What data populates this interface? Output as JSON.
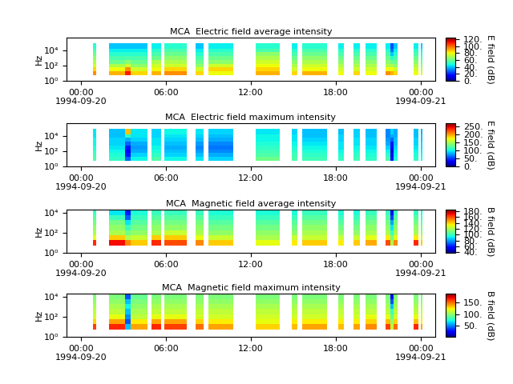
{
  "chart_data": [
    {
      "type": "heatmap",
      "title": "MCA  Electric field average intensity",
      "ylabel": "Hz",
      "log": "y",
      "xlim": [
        -1,
        25
      ],
      "xticks": [
        {
          "value": 0,
          "label": "00:00\n1994-09-20"
        },
        {
          "value": 6,
          "label": "06:00"
        },
        {
          "value": 12,
          "label": "12:00"
        },
        {
          "value": 18,
          "label": "18:00"
        },
        {
          "value": 24,
          "label": "00:00\n1994-09-21"
        }
      ],
      "ylim": [
        1,
        500000
      ],
      "yticks": [
        {
          "value": 1,
          "label": "10⁰"
        },
        {
          "value": 100,
          "label": "10²"
        },
        {
          "value": 10000,
          "label": "10⁴"
        }
      ],
      "x_edges": [
        0.85,
        1.07,
        2.0,
        3.1,
        3.5,
        4.7,
        5.0,
        5.65,
        5.9,
        7.45,
        8.1,
        8.65,
        9.0,
        10.75,
        12.35,
        14.05,
        14.9,
        15.3,
        15.65,
        17.35,
        18.15,
        18.55,
        19.25,
        19.7,
        20.1,
        20.9,
        21.5,
        21.85,
        22.05,
        22.35,
        23.5,
        23.85,
        24.0,
        24.1
      ],
      "y_edges": [
        5.6,
        18,
        56,
        180,
        560,
        1800,
        5600,
        18000,
        100000
      ],
      "cells": [
        [
          95,
          85,
          75,
          70,
          65,
          60,
          55,
          50
        ],
        null,
        [
          90,
          80,
          70,
          60,
          55,
          50,
          45,
          40
        ],
        [
          110,
          95,
          75,
          65,
          55,
          50,
          45,
          40
        ],
        [
          85,
          75,
          65,
          60,
          55,
          50,
          45,
          40
        ],
        null,
        [
          90,
          80,
          75,
          70,
          60,
          55,
          50,
          45
        ],
        null,
        [
          95,
          85,
          75,
          70,
          65,
          60,
          55,
          50
        ],
        null,
        [
          85,
          75,
          65,
          60,
          55,
          50,
          45,
          40
        ],
        null,
        [
          80,
          85,
          75,
          65,
          60,
          55,
          50,
          45
        ],
        null,
        [
          90,
          85,
          80,
          75,
          70,
          65,
          55,
          50
        ],
        null,
        [
          85,
          75,
          70,
          65,
          60,
          55,
          50,
          45
        ],
        null,
        [
          90,
          80,
          75,
          70,
          65,
          60,
          55,
          50
        ],
        null,
        [
          80,
          75,
          70,
          65,
          60,
          55,
          50,
          45
        ],
        null,
        [
          85,
          75,
          70,
          65,
          60,
          55,
          50,
          45
        ],
        null,
        [
          80,
          75,
          70,
          65,
          60,
          55,
          50,
          45
        ],
        null,
        [
          95,
          80,
          70,
          65,
          60,
          55,
          50,
          45
        ],
        [
          90,
          80,
          70,
          60,
          50,
          40,
          30,
          25
        ],
        [
          85,
          75,
          65,
          60,
          55,
          50,
          45,
          40
        ],
        null,
        [
          80,
          75,
          70,
          65,
          60,
          55,
          50,
          45
        ],
        null,
        [
          75,
          70,
          65,
          60,
          55,
          50,
          45,
          40
        ]
      ],
      "colorbar_label": "E field (dB)",
      "colorbar_range": [
        0,
        125
      ],
      "colorbar_ticks": [
        {
          "value": 0,
          "label": "0."
        },
        {
          "value": 20,
          "label": "20."
        },
        {
          "value": 40,
          "label": "40."
        },
        {
          "value": 60,
          "label": "60."
        },
        {
          "value": 80,
          "label": "80."
        },
        {
          "value": 100,
          "label": "100."
        },
        {
          "value": 120,
          "label": "120."
        }
      ]
    },
    {
      "type": "heatmap",
      "title": "MCA  Electric field maximum intensity",
      "ylabel": "Hz",
      "log": "y",
      "xlim": [
        -1,
        25
      ],
      "xticks": [
        {
          "value": 0,
          "label": "00:00\n1994-09-20"
        },
        {
          "value": 6,
          "label": "06:00"
        },
        {
          "value": 12,
          "label": "12:00"
        },
        {
          "value": 18,
          "label": "18:00"
        },
        {
          "value": 24,
          "label": "00:00\n1994-09-21"
        }
      ],
      "ylim": [
        1,
        500000
      ],
      "yticks": [
        {
          "value": 1,
          "label": "10⁰"
        },
        {
          "value": 100,
          "label": "10²"
        },
        {
          "value": 10000,
          "label": "10⁴"
        }
      ],
      "x_edges": [
        0.85,
        1.07,
        2.0,
        3.1,
        3.5,
        4.7,
        5.0,
        5.65,
        5.9,
        7.45,
        8.1,
        8.65,
        9.0,
        10.75,
        12.35,
        14.05,
        14.9,
        15.3,
        15.65,
        17.35,
        18.15,
        18.55,
        19.25,
        19.7,
        20.1,
        20.9,
        21.5,
        21.85,
        22.05,
        22.35,
        23.5,
        23.85,
        24.0,
        24.1
      ],
      "y_edges": [
        5.6,
        18,
        56,
        180,
        560,
        1800,
        5600,
        18000,
        100000
      ],
      "cells": [
        [
          120,
          115,
          110,
          105,
          100,
          100,
          95,
          95
        ],
        null,
        [
          110,
          105,
          100,
          95,
          90,
          90,
          85,
          85
        ],
        [
          60,
          40,
          30,
          40,
          60,
          80,
          110,
          190
        ],
        [
          100,
          90,
          80,
          75,
          80,
          90,
          95,
          95
        ],
        null,
        [
          120,
          110,
          105,
          100,
          95,
          95,
          90,
          90
        ],
        null,
        [
          100,
          90,
          85,
          80,
          85,
          90,
          95,
          100
        ],
        null,
        [
          95,
          85,
          75,
          70,
          75,
          85,
          90,
          95
        ],
        null,
        [
          90,
          80,
          70,
          65,
          70,
          80,
          85,
          90
        ],
        null,
        [
          130,
          120,
          115,
          110,
          105,
          100,
          100,
          95
        ],
        null,
        [
          120,
          115,
          110,
          105,
          100,
          95,
          95,
          90
        ],
        null,
        [
          115,
          110,
          105,
          100,
          95,
          90,
          85,
          85
        ],
        null,
        [
          110,
          105,
          100,
          95,
          95,
          90,
          90,
          85
        ],
        null,
        [
          115,
          110,
          105,
          100,
          95,
          95,
          90,
          90
        ],
        null,
        [
          110,
          105,
          100,
          95,
          90,
          90,
          85,
          85
        ],
        null,
        [
          120,
          110,
          100,
          90,
          80,
          75,
          70,
          70
        ],
        [
          40,
          30,
          20,
          30,
          40,
          60,
          80,
          90
        ],
        [
          105,
          100,
          95,
          90,
          85,
          85,
          80,
          80
        ],
        null,
        [
          110,
          105,
          100,
          95,
          90,
          90,
          85,
          85
        ],
        null,
        [
          105,
          100,
          95,
          90,
          90,
          85,
          85,
          80
        ]
      ],
      "colorbar_label": "E field (dB)",
      "colorbar_range": [
        0,
        270
      ],
      "colorbar_ticks": [
        {
          "value": 0,
          "label": "0."
        },
        {
          "value": 50,
          "label": "50."
        },
        {
          "value": 100,
          "label": "100."
        },
        {
          "value": 150,
          "label": "150."
        },
        {
          "value": 200,
          "label": "200."
        },
        {
          "value": 250,
          "label": "250."
        }
      ]
    },
    {
      "type": "heatmap",
      "title": "MCA  Magnetic field average intensity",
      "ylabel": "Hz",
      "log": "y",
      "xlim": [
        -1,
        25
      ],
      "xticks": [
        {
          "value": 0,
          "label": "00:00\n1994-09-20"
        },
        {
          "value": 6,
          "label": "06:00"
        },
        {
          "value": 12,
          "label": "12:00"
        },
        {
          "value": 18,
          "label": "18:00"
        },
        {
          "value": 24,
          "label": "00:00\n1994-09-21"
        }
      ],
      "ylim": [
        1,
        20000
      ],
      "yticks": [
        {
          "value": 1,
          "label": "10⁰"
        },
        {
          "value": 100,
          "label": "10²"
        },
        {
          "value": 10000,
          "label": "10⁴"
        }
      ],
      "x_edges": [
        0.85,
        1.07,
        2.0,
        3.1,
        3.5,
        4.7,
        5.0,
        5.65,
        5.9,
        7.45,
        8.1,
        8.65,
        9.0,
        10.75,
        12.35,
        14.05,
        14.9,
        15.3,
        15.65,
        17.35,
        18.15,
        18.55,
        19.25,
        19.7,
        20.1,
        20.9,
        21.5,
        21.85,
        22.05,
        22.35,
        23.5,
        23.85,
        24.0,
        24.1
      ],
      "y_edges": [
        5.6,
        18,
        56,
        180,
        560,
        1800,
        5600,
        18000
      ],
      "cells": [
        [
          165,
          130,
          120,
          115,
          110,
          105,
          100
        ],
        null,
        [
          170,
          140,
          120,
          115,
          110,
          100,
          90
        ],
        [
          150,
          120,
          110,
          100,
          90,
          70,
          60
        ],
        [
          140,
          125,
          115,
          110,
          105,
          100,
          95
        ],
        null,
        [
          165,
          140,
          120,
          115,
          110,
          105,
          100
        ],
        null,
        [
          160,
          140,
          125,
          115,
          110,
          105,
          100
        ],
        null,
        [
          150,
          130,
          120,
          115,
          110,
          105,
          100
        ],
        null,
        [
          140,
          125,
          115,
          110,
          105,
          100,
          95
        ],
        null,
        [
          130,
          120,
          115,
          110,
          105,
          100,
          95
        ],
        null,
        [
          135,
          125,
          115,
          110,
          105,
          100,
          95
        ],
        null,
        [
          140,
          125,
          120,
          115,
          110,
          105,
          100
        ],
        null,
        [
          135,
          125,
          115,
          110,
          105,
          100,
          95
        ],
        null,
        [
          140,
          125,
          115,
          110,
          105,
          100,
          95
        ],
        null,
        [
          145,
          130,
          120,
          115,
          110,
          105,
          100
        ],
        null,
        [
          160,
          135,
          120,
          115,
          110,
          105,
          100
        ],
        [
          120,
          110,
          100,
          90,
          80,
          65,
          55
        ],
        [
          150,
          130,
          120,
          115,
          110,
          105,
          100
        ],
        null,
        [
          165,
          135,
          120,
          115,
          110,
          105,
          100
        ],
        null,
        [
          140,
          125,
          115,
          110,
          105,
          100,
          95
        ]
      ],
      "colorbar_label": "B field (dB)",
      "colorbar_range": [
        38,
        185
      ],
      "colorbar_ticks": [
        {
          "value": 40,
          "label": "40."
        },
        {
          "value": 60,
          "label": "60."
        },
        {
          "value": 80,
          "label": "80."
        },
        {
          "value": 100,
          "label": "100."
        },
        {
          "value": 120,
          "label": "120."
        },
        {
          "value": 140,
          "label": "140."
        },
        {
          "value": 160,
          "label": "160."
        },
        {
          "value": 180,
          "label": "180."
        }
      ]
    },
    {
      "type": "heatmap",
      "title": "MCA  Magnetic field maximum intensity",
      "ylabel": "Hz",
      "log": "y",
      "xlim": [
        -1,
        25
      ],
      "xticks": [
        {
          "value": 0,
          "label": "00:00\n1994-09-20"
        },
        {
          "value": 6,
          "label": "06:00"
        },
        {
          "value": 12,
          "label": "12:00"
        },
        {
          "value": 18,
          "label": "18:00"
        },
        {
          "value": 24,
          "label": "00:00\n1994-09-21"
        }
      ],
      "ylim": [
        1,
        20000
      ],
      "yticks": [
        {
          "value": 1,
          "label": "10⁰"
        },
        {
          "value": 100,
          "label": "10²"
        },
        {
          "value": 10000,
          "label": "10⁴"
        }
      ],
      "x_edges": [
        0.85,
        1.07,
        2.0,
        3.1,
        3.5,
        4.7,
        5.0,
        5.65,
        5.9,
        7.45,
        8.1,
        8.65,
        9.0,
        10.75,
        12.35,
        14.05,
        14.9,
        15.3,
        15.65,
        17.35,
        18.15,
        18.55,
        19.25,
        19.7,
        20.1,
        20.9,
        21.5,
        21.85,
        22.05,
        22.35,
        23.5,
        23.85,
        24.0,
        24.1
      ],
      "y_edges": [
        5.6,
        18,
        56,
        180,
        560,
        1800,
        5600,
        18000
      ],
      "cells": [
        [
          160,
          130,
          115,
          110,
          105,
          100,
          95
        ],
        null,
        [
          165,
          140,
          120,
          110,
          105,
          100,
          95
        ],
        [
          60,
          40,
          50,
          60,
          70,
          60,
          40
        ],
        [
          140,
          125,
          110,
          105,
          100,
          95,
          90
        ],
        null,
        [
          165,
          140,
          120,
          110,
          105,
          100,
          95
        ],
        null,
        [
          160,
          140,
          120,
          110,
          105,
          100,
          95
        ],
        null,
        [
          150,
          130,
          115,
          110,
          105,
          100,
          95
        ],
        null,
        [
          140,
          125,
          115,
          110,
          105,
          100,
          95
        ],
        null,
        [
          130,
          120,
          115,
          110,
          105,
          100,
          95
        ],
        null,
        [
          135,
          125,
          115,
          110,
          105,
          100,
          95
        ],
        null,
        [
          140,
          125,
          115,
          110,
          105,
          100,
          95
        ],
        null,
        [
          135,
          125,
          115,
          110,
          105,
          100,
          95
        ],
        null,
        [
          140,
          125,
          115,
          110,
          105,
          100,
          95
        ],
        null,
        [
          145,
          130,
          120,
          110,
          105,
          100,
          95
        ],
        null,
        [
          160,
          135,
          120,
          110,
          105,
          100,
          95
        ],
        [
          110,
          100,
          90,
          80,
          60,
          40,
          20
        ],
        [
          150,
          130,
          115,
          110,
          105,
          100,
          95
        ],
        null,
        [
          165,
          135,
          120,
          110,
          105,
          100,
          95
        ],
        null,
        [
          140,
          125,
          115,
          110,
          105,
          100,
          95
        ]
      ],
      "colorbar_label": "B field (dB)",
      "colorbar_range": [
        0,
        190
      ],
      "colorbar_ticks": [
        {
          "value": 50,
          "label": "50."
        },
        {
          "value": 100,
          "label": "100."
        },
        {
          "value": 150,
          "label": "150."
        }
      ]
    }
  ]
}
